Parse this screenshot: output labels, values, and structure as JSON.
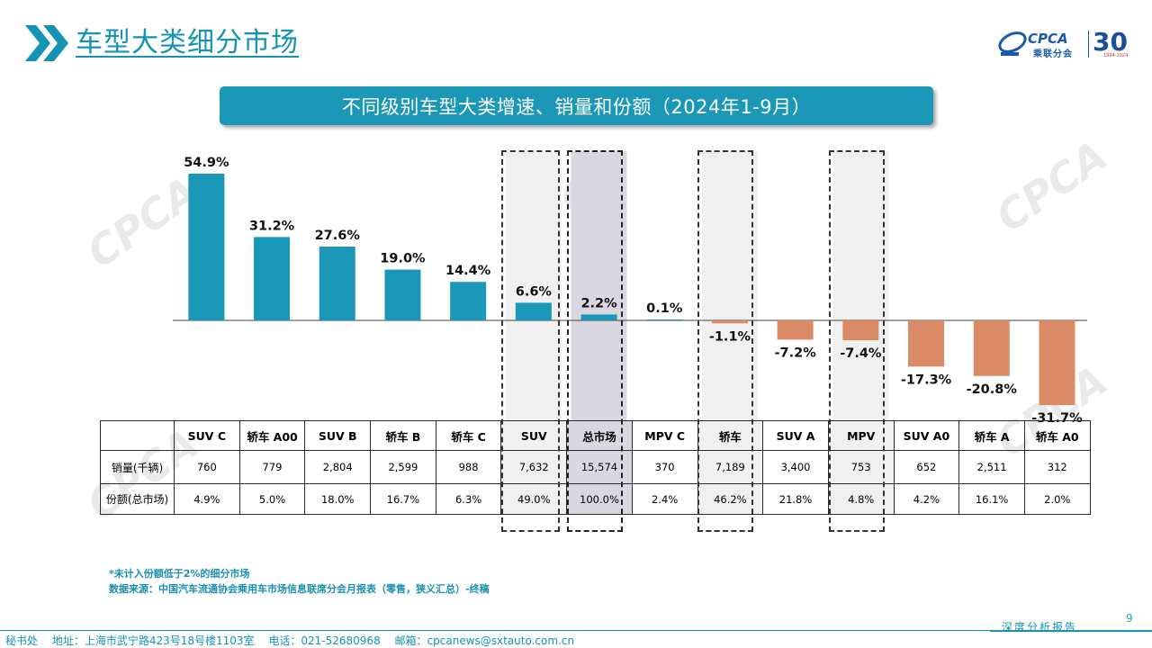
{
  "header": {
    "title": "车型大类细分市场",
    "logo_text": "CPCA",
    "logo_cn": "乘联分会",
    "anniv": "30",
    "anniv_years": "1994-2024"
  },
  "banner": {
    "text": "不同级别车型大类增速、销量和份额（2024年1-9月）"
  },
  "colors": {
    "accent": "#1593b4",
    "positive": "#1b97b8",
    "negative": "#db8a68"
  },
  "chart_data": {
    "type": "bar",
    "title": "不同级别车型大类增速、销量和份额（2024年1-9月）",
    "categories": [
      "SUV C",
      "轿车 A00",
      "SUV B",
      "轿车 B",
      "轿车 C",
      "SUV",
      "总市场",
      "MPV C",
      "轿车",
      "SUV A",
      "MPV",
      "SUV A0",
      "轿车 A",
      "轿车 A0"
    ],
    "values": [
      54.9,
      31.2,
      27.6,
      19.0,
      14.4,
      6.6,
      2.2,
      0.1,
      -1.1,
      -7.2,
      -7.4,
      -17.3,
      -20.8,
      -31.7
    ],
    "labels": [
      "54.9%",
      "31.2%",
      "27.6%",
      "19.0%",
      "14.4%",
      "6.6%",
      "2.2%",
      "0.1%",
      "-1.1%",
      "-7.2%",
      "-7.4%",
      "-17.3%",
      "-20.8%",
      "-31.7%"
    ],
    "highlighted": [
      "SUV",
      "总市场",
      "轿车",
      "MPV"
    ],
    "grid": false
  },
  "table": {
    "rows": [
      {
        "label": "销量(千辆)",
        "values": [
          "760",
          "779",
          "2,804",
          "2,599",
          "988",
          "7,632",
          "15,574",
          "370",
          "7,189",
          "3,400",
          "753",
          "652",
          "2,511",
          "312"
        ]
      },
      {
        "label": "份额(总市场)",
        "values": [
          "4.9%",
          "5.0%",
          "18.0%",
          "16.7%",
          "6.3%",
          "49.0%",
          "100.0%",
          "2.4%",
          "46.2%",
          "21.8%",
          "4.8%",
          "4.2%",
          "16.1%",
          "2.0%"
        ]
      }
    ]
  },
  "notes": {
    "note1": "*未计入份额低于2%的细分市场",
    "note2": "数据来源：中国汽车流通协会乘用车市场信息联席分会月报表（零售，狭义汇总）-终稿"
  },
  "footer": {
    "office": "秘书处",
    "address": "地址：上海市武宁路423号18号楼1103室",
    "phone": "电话：021-52680968",
    "email": "邮箱：cpcanews@sxtauto.com.cn",
    "report": "深度分析报告",
    "page": "9"
  }
}
